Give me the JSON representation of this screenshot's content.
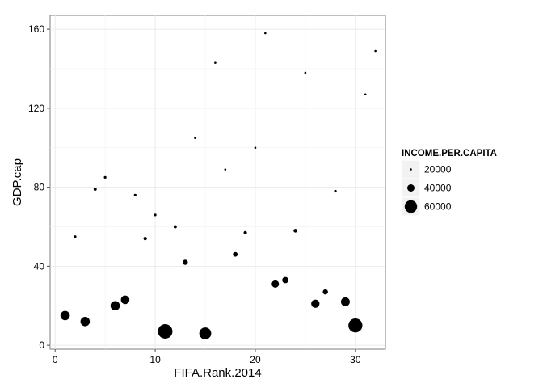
{
  "chart_data": {
    "type": "scatter",
    "title": "",
    "xlabel": "FIFA.Rank.2014",
    "ylabel": "GDP.cap",
    "xlim": [
      -0.5,
      33.0
    ],
    "ylim": [
      -2,
      167
    ],
    "x_ticks": [
      0,
      10,
      20,
      30
    ],
    "y_ticks": [
      0,
      40,
      80,
      120,
      160
    ],
    "grid": true,
    "size_variable": "INCOME.PER.CAPITA",
    "size_range": [
      20000,
      70000
    ],
    "legend": {
      "title": "INCOME.PER.CAPITA",
      "position": "right",
      "entries": [
        {
          "label": "20000",
          "value": 20000
        },
        {
          "label": "40000",
          "value": 40000
        },
        {
          "label": "60000",
          "value": 60000
        }
      ]
    },
    "points": [
      {
        "x": 1,
        "y": 15,
        "size": 48000
      },
      {
        "x": 2,
        "y": 55,
        "size": 22000
      },
      {
        "x": 3,
        "y": 12,
        "size": 48000
      },
      {
        "x": 4,
        "y": 79,
        "size": 24000
      },
      {
        "x": 5,
        "y": 85,
        "size": 22000
      },
      {
        "x": 6,
        "y": 20,
        "size": 48000
      },
      {
        "x": 7,
        "y": 23,
        "size": 45000
      },
      {
        "x": 8,
        "y": 76,
        "size": 22000
      },
      {
        "x": 9,
        "y": 54,
        "size": 25000
      },
      {
        "x": 10,
        "y": 66,
        "size": 22000
      },
      {
        "x": 11,
        "y": 7,
        "size": 68000
      },
      {
        "x": 12,
        "y": 60,
        "size": 24000
      },
      {
        "x": 13,
        "y": 42,
        "size": 32000
      },
      {
        "x": 14,
        "y": 105,
        "size": 21000
      },
      {
        "x": 15,
        "y": 6,
        "size": 58000
      },
      {
        "x": 16,
        "y": 143,
        "size": 20000
      },
      {
        "x": 17,
        "y": 89,
        "size": 20000
      },
      {
        "x": 18,
        "y": 46,
        "size": 30000
      },
      {
        "x": 19,
        "y": 57,
        "size": 25000
      },
      {
        "x": 20,
        "y": 100,
        "size": 20000
      },
      {
        "x": 21,
        "y": 158,
        "size": 20000
      },
      {
        "x": 22,
        "y": 31,
        "size": 40000
      },
      {
        "x": 23,
        "y": 33,
        "size": 36000
      },
      {
        "x": 24,
        "y": 58,
        "size": 26000
      },
      {
        "x": 25,
        "y": 138,
        "size": 20000
      },
      {
        "x": 26,
        "y": 21,
        "size": 44000
      },
      {
        "x": 27,
        "y": 27,
        "size": 32000
      },
      {
        "x": 28,
        "y": 78,
        "size": 22000
      },
      {
        "x": 29,
        "y": 22,
        "size": 46000
      },
      {
        "x": 30,
        "y": 10,
        "size": 66000
      },
      {
        "x": 31,
        "y": 127,
        "size": 20000
      },
      {
        "x": 32,
        "y": 149,
        "size": 20000
      }
    ]
  }
}
